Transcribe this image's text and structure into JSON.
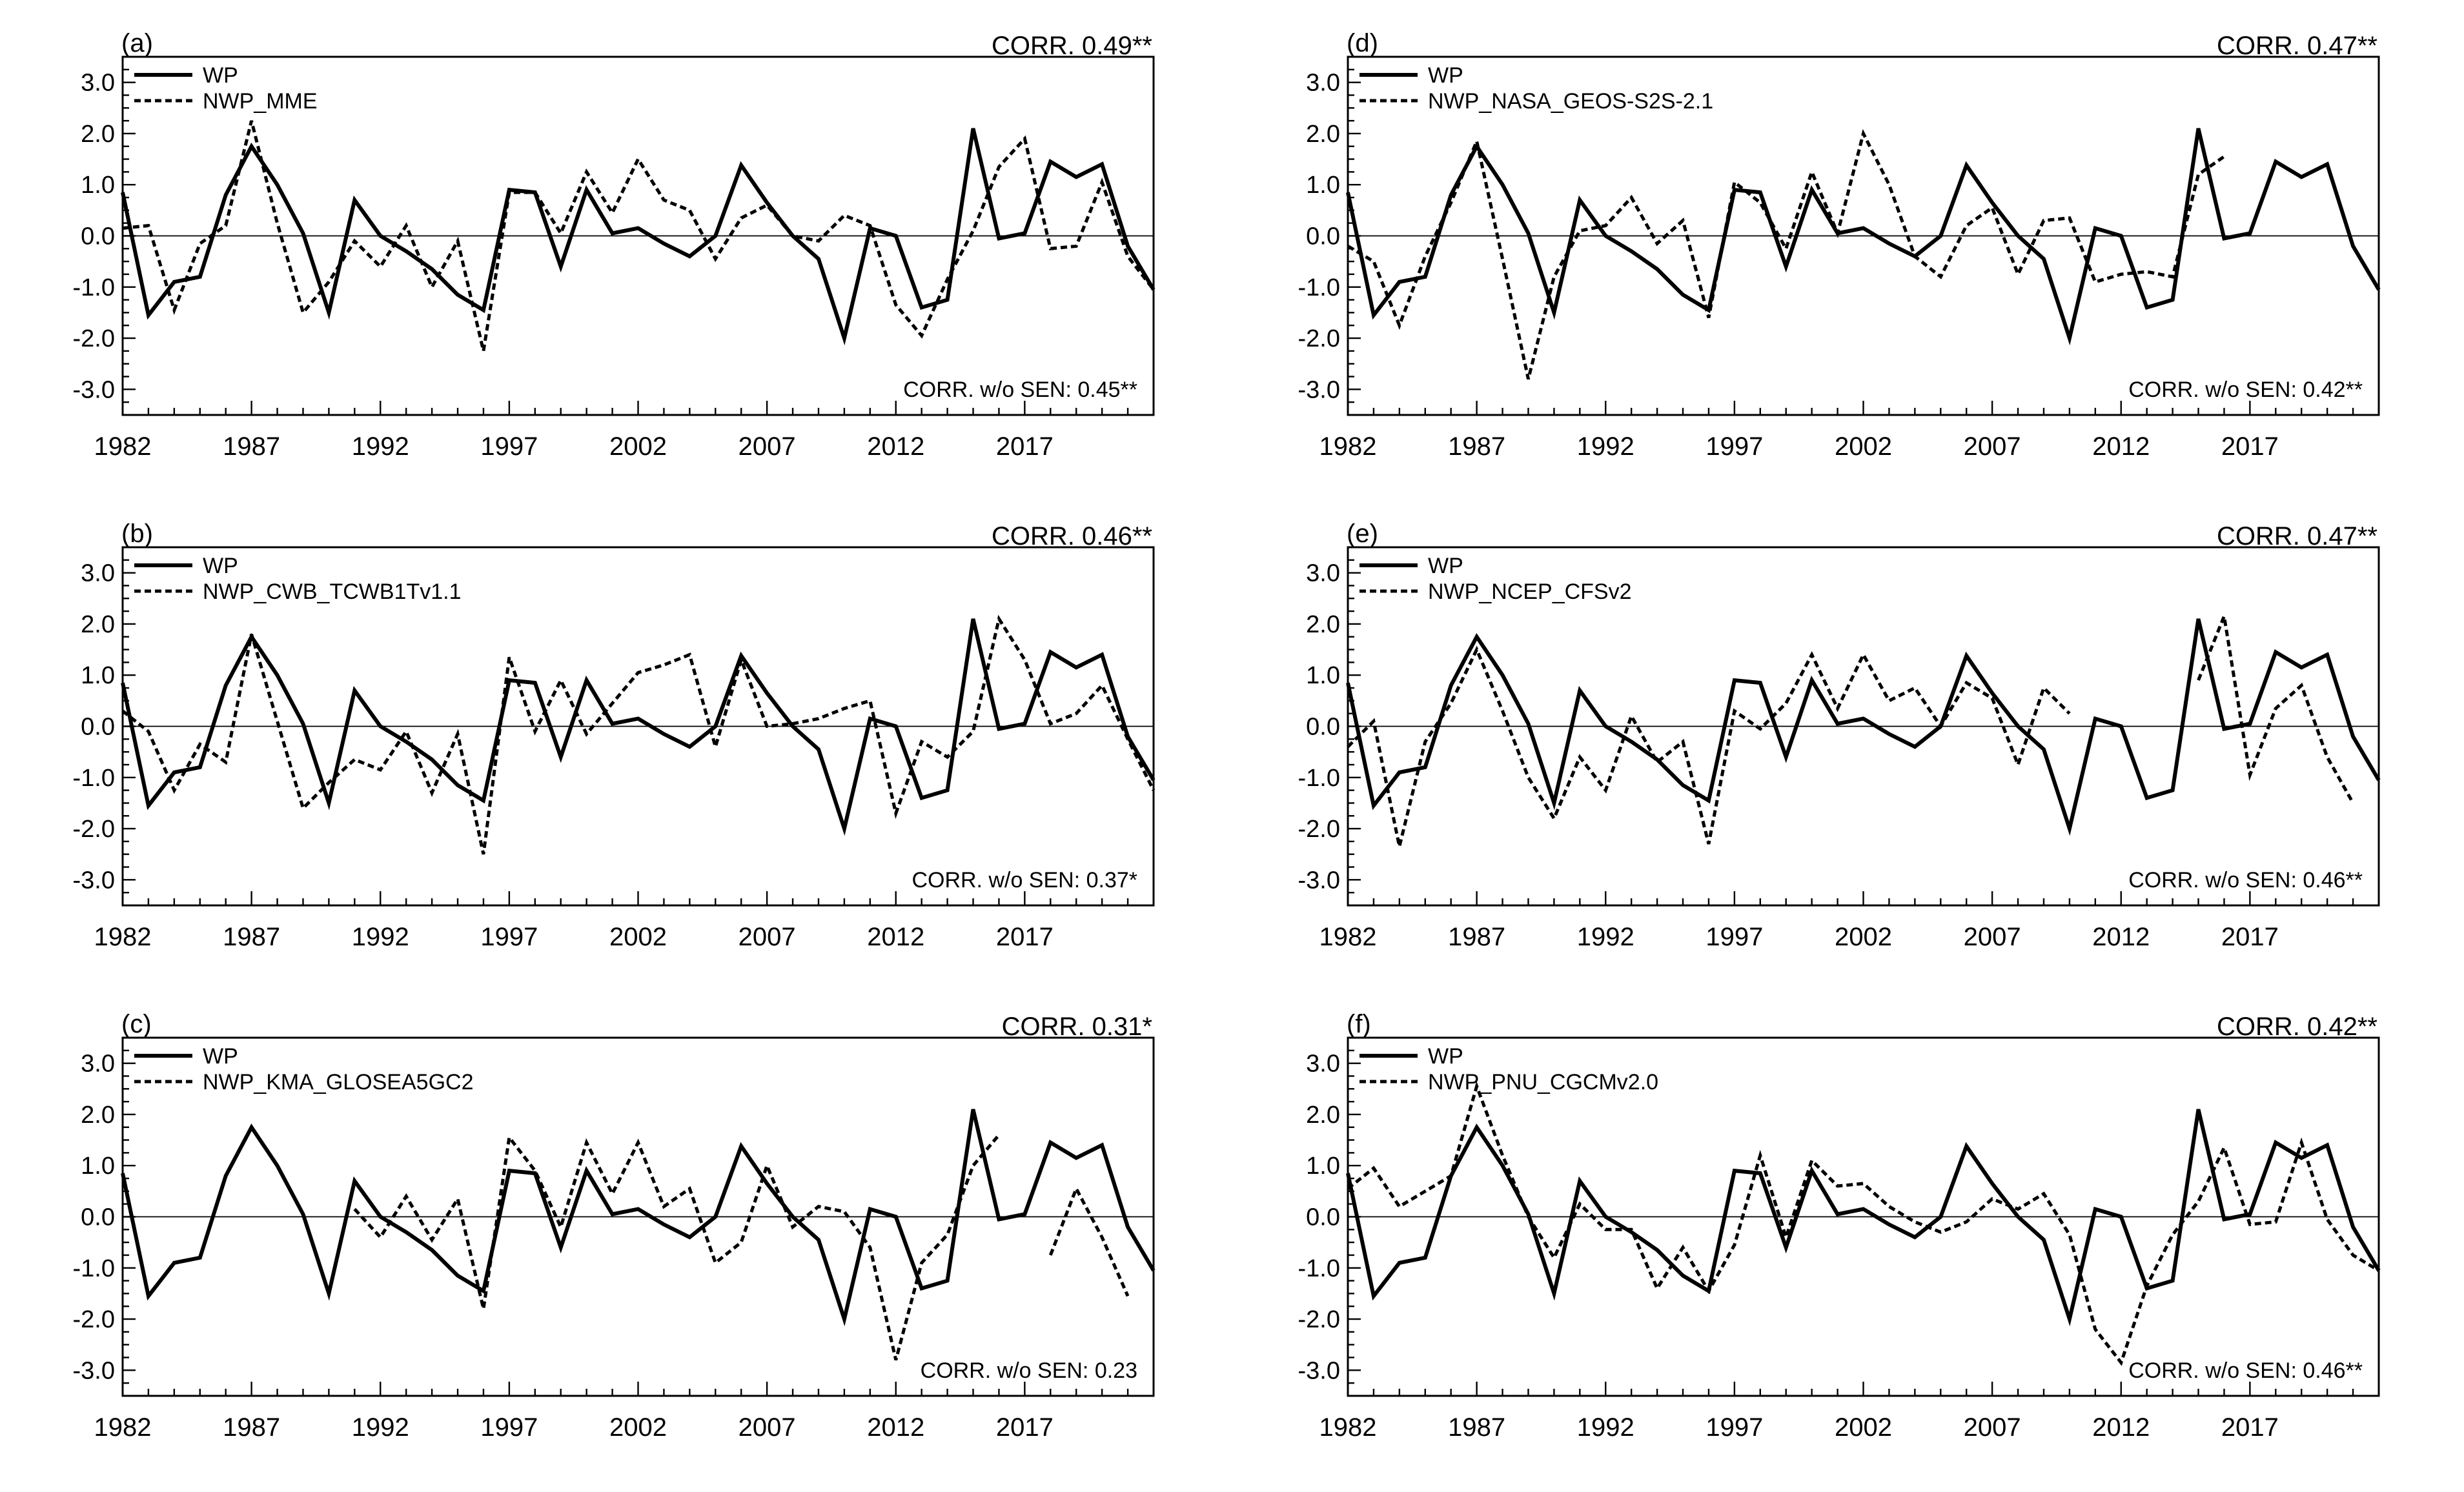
{
  "chart_data": {
    "type": "line",
    "x": [
      1982,
      1983,
      1984,
      1985,
      1986,
      1987,
      1988,
      1989,
      1990,
      1991,
      1992,
      1993,
      1994,
      1995,
      1996,
      1997,
      1998,
      1999,
      2000,
      2001,
      2002,
      2003,
      2004,
      2005,
      2006,
      2007,
      2008,
      2009,
      2010,
      2011,
      2012,
      2013,
      2014,
      2015,
      2016,
      2017,
      2018,
      2019,
      2020,
      2021,
      2022
    ],
    "xlim": [
      1982,
      2022
    ],
    "ylim": [
      -3.5,
      3.5
    ],
    "x_ticks": [
      1982,
      1987,
      1992,
      1997,
      2002,
      2007,
      2012,
      2017
    ],
    "y_ticks": [
      3.0,
      2.0,
      1.0,
      0.0,
      -1.0,
      -2.0,
      -3.0
    ],
    "y_tick_labels": [
      "3.0",
      "2.0",
      "1.0",
      "0.0",
      "-1.0",
      "-2.0",
      "-3.0"
    ],
    "wp_values": [
      0.85,
      -1.55,
      -0.9,
      -0.8,
      0.8,
      1.75,
      1.0,
      0.05,
      -1.5,
      0.7,
      0.0,
      -0.3,
      -0.65,
      -1.15,
      -1.45,
      0.9,
      0.85,
      -0.6,
      0.9,
      0.05,
      0.15,
      -0.15,
      -0.4,
      0.0,
      1.38,
      0.65,
      0.0,
      -0.45,
      -2.0,
      0.15,
      0.0,
      -1.4,
      -1.25,
      2.1,
      -0.05,
      0.05,
      1.45,
      1.15,
      1.4,
      -0.2,
      -1.05
    ],
    "panels": [
      {
        "label": "(a)",
        "corr": "CORR. 0.49**",
        "corr_wo": "CORR. w/o SEN: 0.45**",
        "legend": [
          "WP",
          "NWP_MME"
        ],
        "series": [
          {
            "name": "WP",
            "ref": "wp_values"
          },
          {
            "name": "NWP_MME",
            "values": [
              0.15,
              0.2,
              -1.45,
              -0.15,
              0.2,
              2.25,
              0.25,
              -1.5,
              -0.9,
              -0.1,
              -0.6,
              0.2,
              -1.0,
              -0.1,
              -2.25,
              0.85,
              0.85,
              0.05,
              1.25,
              0.45,
              1.5,
              0.7,
              0.5,
              -0.45,
              0.35,
              0.6,
              0.0,
              -0.1,
              0.4,
              0.2,
              -1.35,
              -1.95,
              -0.85,
              0.1,
              1.35,
              1.9,
              -0.25,
              -0.2,
              1.05,
              -0.4,
              -1.05
            ]
          }
        ]
      },
      {
        "label": "(b)",
        "corr": "CORR. 0.46**",
        "corr_wo": "CORR. w/o SEN: 0.37*",
        "legend": [
          "WP",
          "NWP_CWB_TCWB1Tv1.1"
        ],
        "series": [
          {
            "name": "WP",
            "ref": "wp_values"
          },
          {
            "name": "NWP_CWB_TCWB1Tv1.1",
            "values": [
              0.3,
              -0.1,
              -1.25,
              -0.35,
              -0.7,
              1.8,
              0.1,
              -1.6,
              -1.1,
              -0.65,
              -0.85,
              -0.1,
              -1.3,
              -0.15,
              -2.5,
              1.35,
              -0.1,
              0.9,
              -0.15,
              0.45,
              1.05,
              1.2,
              1.4,
              -0.4,
              1.3,
              0.0,
              0.05,
              0.15,
              0.35,
              0.5,
              -1.7,
              -0.3,
              -0.6,
              -0.1,
              2.1,
              1.3,
              0.05,
              0.25,
              0.8,
              -0.25,
              -1.25
            ]
          }
        ]
      },
      {
        "label": "(c)",
        "corr": "CORR. 0.31*",
        "corr_wo": "CORR. w/o SEN: 0.23",
        "legend": [
          "WP",
          "NWP_KMA_GLOSEA5GC2"
        ],
        "series": [
          {
            "name": "WP",
            "ref": "wp_values"
          },
          {
            "name": "NWP_KMA_GLOSEA5GC2",
            "values": [
              null,
              null,
              null,
              null,
              null,
              null,
              null,
              null,
              null,
              0.15,
              -0.4,
              0.4,
              -0.45,
              0.35,
              -1.8,
              1.55,
              0.9,
              -0.2,
              1.45,
              0.45,
              1.45,
              0.2,
              0.55,
              -0.9,
              -0.5,
              1.0,
              -0.2,
              0.2,
              0.1,
              -0.6,
              -2.8,
              -0.9,
              -0.35,
              1.0,
              1.6,
              null,
              -0.75,
              0.55,
              -0.4,
              -1.55,
              null
            ]
          }
        ]
      },
      {
        "label": "(d)",
        "corr": "CORR. 0.47**",
        "corr_wo": "CORR. w/o SEN: 0.42**",
        "legend": [
          "WP",
          "NWP_NASA_GEOS-S2S-2.1"
        ],
        "series": [
          {
            "name": "WP",
            "ref": "wp_values"
          },
          {
            "name": "NWP_NASA_GEOS-S2S-2.1",
            "values": [
              -0.2,
              -0.5,
              -1.75,
              -0.4,
              0.65,
              1.85,
              -0.45,
              -2.8,
              -0.8,
              0.1,
              0.2,
              0.75,
              -0.15,
              0.3,
              -1.6,
              1.05,
              0.65,
              -0.25,
              1.25,
              0.05,
              2.0,
              1.0,
              -0.4,
              -0.8,
              0.2,
              0.55,
              -0.75,
              0.3,
              0.35,
              -0.9,
              -0.75,
              -0.7,
              -0.8,
              1.2,
              1.55,
              null,
              null,
              null,
              null,
              null,
              null
            ]
          }
        ]
      },
      {
        "label": "(e)",
        "corr": "CORR. 0.47**",
        "corr_wo": "CORR. w/o SEN: 0.46**",
        "legend": [
          "WP",
          "NWP_NCEP_CFSv2"
        ],
        "series": [
          {
            "name": "WP",
            "ref": "wp_values"
          },
          {
            "name": "NWP_NCEP_CFSv2",
            "values": [
              -0.4,
              0.1,
              -2.35,
              -0.3,
              0.45,
              1.5,
              0.3,
              -1.0,
              -1.8,
              -0.6,
              -1.25,
              0.2,
              -0.7,
              -0.3,
              -2.3,
              0.3,
              -0.05,
              0.45,
              1.4,
              0.35,
              1.4,
              0.5,
              0.75,
              0.0,
              0.85,
              0.55,
              -0.75,
              0.75,
              0.25,
              null,
              null,
              null,
              null,
              0.9,
              2.15,
              -0.95,
              0.35,
              0.8,
              -0.6,
              -1.5,
              null
            ]
          }
        ]
      },
      {
        "label": "(f)",
        "corr": "CORR. 0.42**",
        "corr_wo": "CORR. w/o SEN: 0.46**",
        "legend": [
          "WP",
          "NWP_PNU_CGCMv2.0"
        ],
        "series": [
          {
            "name": "WP",
            "ref": "wp_values"
          },
          {
            "name": "NWP_PNU_CGCMv2.0",
            "values": [
              0.55,
              0.95,
              0.2,
              0.5,
              0.8,
              2.55,
              1.2,
              0.0,
              -0.8,
              0.25,
              -0.25,
              -0.25,
              -1.4,
              -0.6,
              -1.45,
              -0.55,
              1.2,
              -0.4,
              1.1,
              0.6,
              0.65,
              0.2,
              -0.1,
              -0.3,
              -0.1,
              0.35,
              0.15,
              0.45,
              -0.35,
              -2.2,
              -2.85,
              -1.35,
              -0.35,
              0.3,
              1.35,
              -0.15,
              -0.1,
              1.45,
              -0.05,
              -0.75,
              -1.05
            ]
          }
        ]
      }
    ]
  }
}
